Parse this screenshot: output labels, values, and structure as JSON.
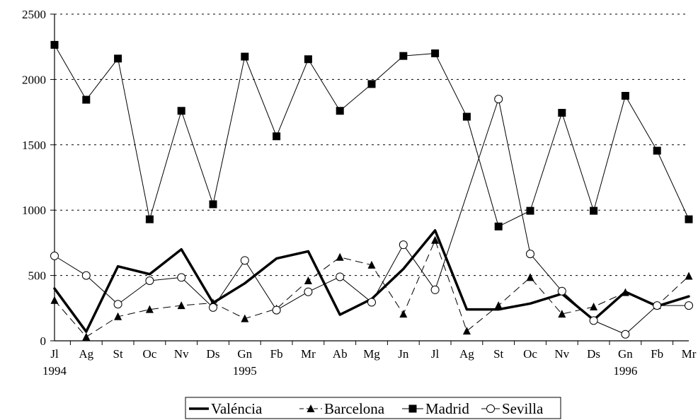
{
  "chart_data": {
    "type": "line",
    "title": "",
    "xlabel": "",
    "ylabel": "",
    "ylim": [
      0,
      2500
    ],
    "y_ticks": [
      "0",
      "500",
      "1000",
      "1500",
      "2000",
      "2500"
    ],
    "grid": "horizontal-dotted",
    "legend_position": "bottom",
    "categories": [
      "Jl",
      "Ag",
      "St",
      "Oc",
      "Nv",
      "Ds",
      "Gn",
      "Fb",
      "Mr",
      "Ab",
      "Mg",
      "Jn",
      "Jl",
      "Ag",
      "St",
      "Oc",
      "Nv",
      "Ds",
      "Gn",
      "Fb",
      "Mr"
    ],
    "year_labels": [
      {
        "index": 0,
        "text": "1994"
      },
      {
        "index": 6,
        "text": "1995"
      },
      {
        "index": 18,
        "text": "1996"
      }
    ],
    "series": [
      {
        "name": "Valéncia",
        "style": "thick-line",
        "marker": "none",
        "values": [
          400,
          70,
          570,
          510,
          700,
          290,
          440,
          630,
          685,
          200,
          320,
          550,
          845,
          240,
          240,
          285,
          360,
          160,
          375,
          265,
          340
        ]
      },
      {
        "name": "Barcelona",
        "style": "dashed-line",
        "marker": "triangle",
        "values": [
          310,
          30,
          185,
          240,
          270,
          290,
          170,
          245,
          460,
          640,
          580,
          205,
          770,
          75,
          270,
          485,
          205,
          260,
          370,
          270,
          495
        ]
      },
      {
        "name": "Madrid",
        "style": "thin-line",
        "marker": "square",
        "values": [
          2265,
          1845,
          2160,
          930,
          1760,
          1045,
          2175,
          1565,
          2155,
          1760,
          1965,
          2180,
          2200,
          1715,
          875,
          995,
          1745,
          995,
          1875,
          1455,
          930
        ]
      },
      {
        "name": "Sevilla",
        "style": "thin-line",
        "marker": "open-circle",
        "values": [
          650,
          500,
          280,
          460,
          485,
          255,
          615,
          235,
          375,
          490,
          295,
          735,
          390,
          null,
          1850,
          665,
          380,
          155,
          50,
          270,
          270
        ]
      }
    ]
  }
}
